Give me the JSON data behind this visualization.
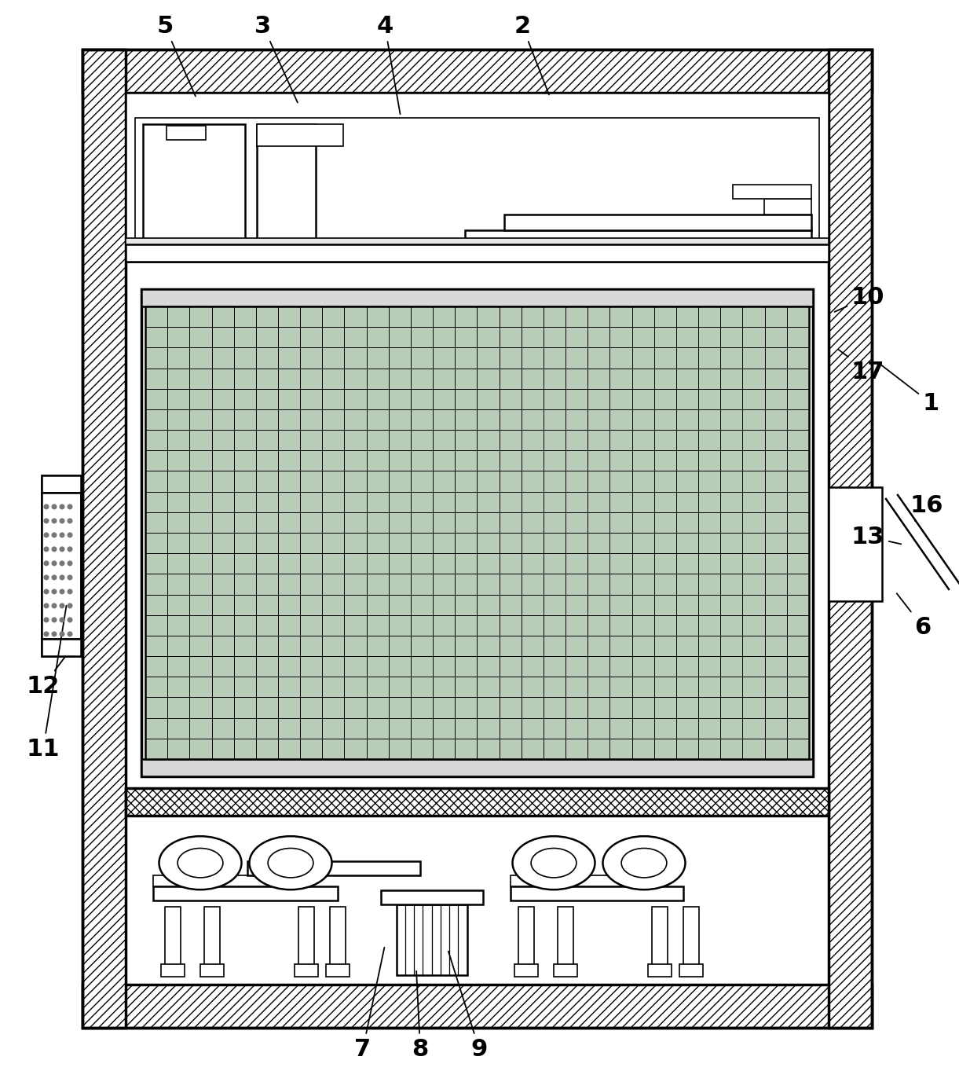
{
  "bg": "#ffffff",
  "black": "#000000",
  "grid_color": "#b8ccb8",
  "gray_light": "#d8d8d8"
}
